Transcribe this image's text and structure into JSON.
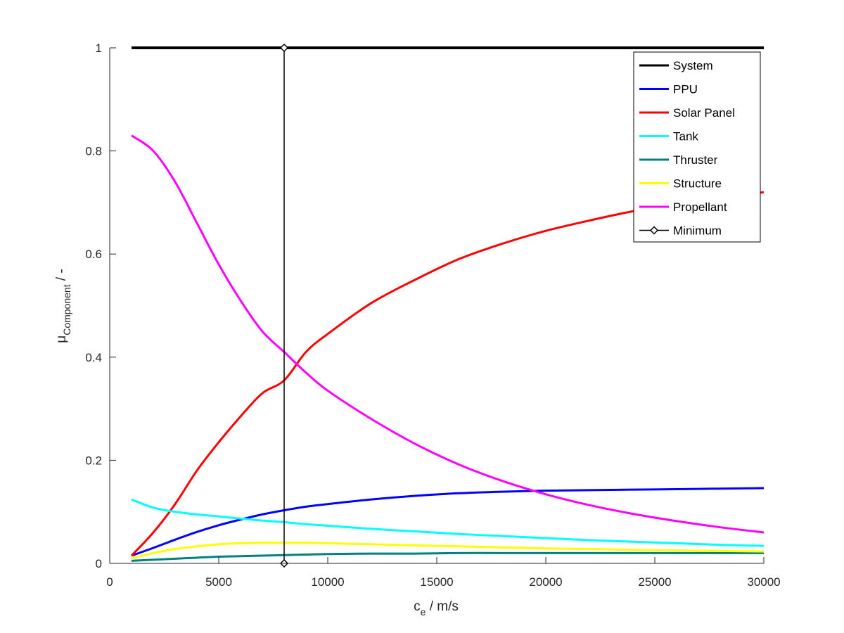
{
  "chart_data": {
    "type": "line",
    "title": "",
    "xlabel": {
      "main": "c",
      "sub": "e",
      "unit": " / m/s"
    },
    "ylabel": {
      "main": "μ",
      "sub": "Component",
      "unit": " / -"
    },
    "xlim": [
      0,
      30000
    ],
    "ylim": [
      0,
      1
    ],
    "xticks": [
      0,
      5000,
      10000,
      15000,
      20000,
      25000,
      30000
    ],
    "xtick_labels": [
      "0",
      "5000",
      "10000",
      "15000",
      "20000",
      "25000",
      "30000"
    ],
    "yticks": [
      0,
      0.2,
      0.4,
      0.6,
      0.8,
      1
    ],
    "ytick_labels": [
      "0",
      "0.2",
      "0.4",
      "0.6",
      "0.8",
      "1"
    ],
    "grid": false,
    "legend_position": "top-right",
    "x": [
      1000,
      2000,
      3000,
      4000,
      5000,
      6000,
      7000,
      8000,
      9000,
      10000,
      12000,
      14000,
      16000,
      18000,
      20000,
      22000,
      24000,
      26000,
      28000,
      30000
    ],
    "series": [
      {
        "name": "System",
        "color": "#000000",
        "width": 4,
        "values": [
          1,
          1,
          1,
          1,
          1,
          1,
          1,
          1,
          1,
          1,
          1,
          1,
          1,
          1,
          1,
          1,
          1,
          1,
          1,
          1
        ]
      },
      {
        "name": "PPU",
        "color": "#0000ff",
        "width": 3,
        "values": [
          0.015,
          0.03,
          0.046,
          0.061,
          0.074,
          0.085,
          0.095,
          0.103,
          0.11,
          0.115,
          0.124,
          0.131,
          0.136,
          0.139,
          0.141,
          0.142,
          0.143,
          0.144,
          0.145,
          0.146
        ]
      },
      {
        "name": "Solar Panel",
        "color": "#ff0000",
        "width": 3,
        "values": [
          0.015,
          0.06,
          0.115,
          0.18,
          0.235,
          0.285,
          0.33,
          0.355,
          0.41,
          0.445,
          0.505,
          0.55,
          0.59,
          0.62,
          0.645,
          0.665,
          0.683,
          0.697,
          0.708,
          0.72
        ]
      },
      {
        "name": "Tank",
        "color": "#00ffff",
        "width": 3,
        "values": [
          0.124,
          0.108,
          0.1,
          0.095,
          0.091,
          0.087,
          0.083,
          0.08,
          0.076,
          0.073,
          0.067,
          0.062,
          0.057,
          0.053,
          0.049,
          0.045,
          0.042,
          0.039,
          0.036,
          0.034
        ]
      },
      {
        "name": "Thruster",
        "color": "#008080",
        "width": 3,
        "values": [
          0.005,
          0.007,
          0.009,
          0.011,
          0.013,
          0.014,
          0.015,
          0.016,
          0.017,
          0.018,
          0.019,
          0.019,
          0.02,
          0.02,
          0.02,
          0.02,
          0.02,
          0.02,
          0.02,
          0.02
        ]
      },
      {
        "name": "Structure",
        "color": "#ffff00",
        "width": 3,
        "values": [
          0.01,
          0.02,
          0.028,
          0.033,
          0.037,
          0.039,
          0.04,
          0.04,
          0.04,
          0.039,
          0.037,
          0.035,
          0.033,
          0.031,
          0.029,
          0.028,
          0.026,
          0.025,
          0.024,
          0.023
        ]
      },
      {
        "name": "Propellant",
        "color": "#ff00ff",
        "width": 3,
        "values": [
          0.83,
          0.8,
          0.74,
          0.66,
          0.58,
          0.51,
          0.45,
          0.41,
          0.37,
          0.335,
          0.28,
          0.232,
          0.192,
          0.16,
          0.134,
          0.113,
          0.096,
          0.082,
          0.07,
          0.06
        ]
      }
    ],
    "minimum_marker": {
      "name": "Minimum",
      "color": "#000000",
      "width": 1.5,
      "marker": "diamond",
      "x": [
        8000,
        8000
      ],
      "y": [
        1,
        0
      ]
    }
  }
}
